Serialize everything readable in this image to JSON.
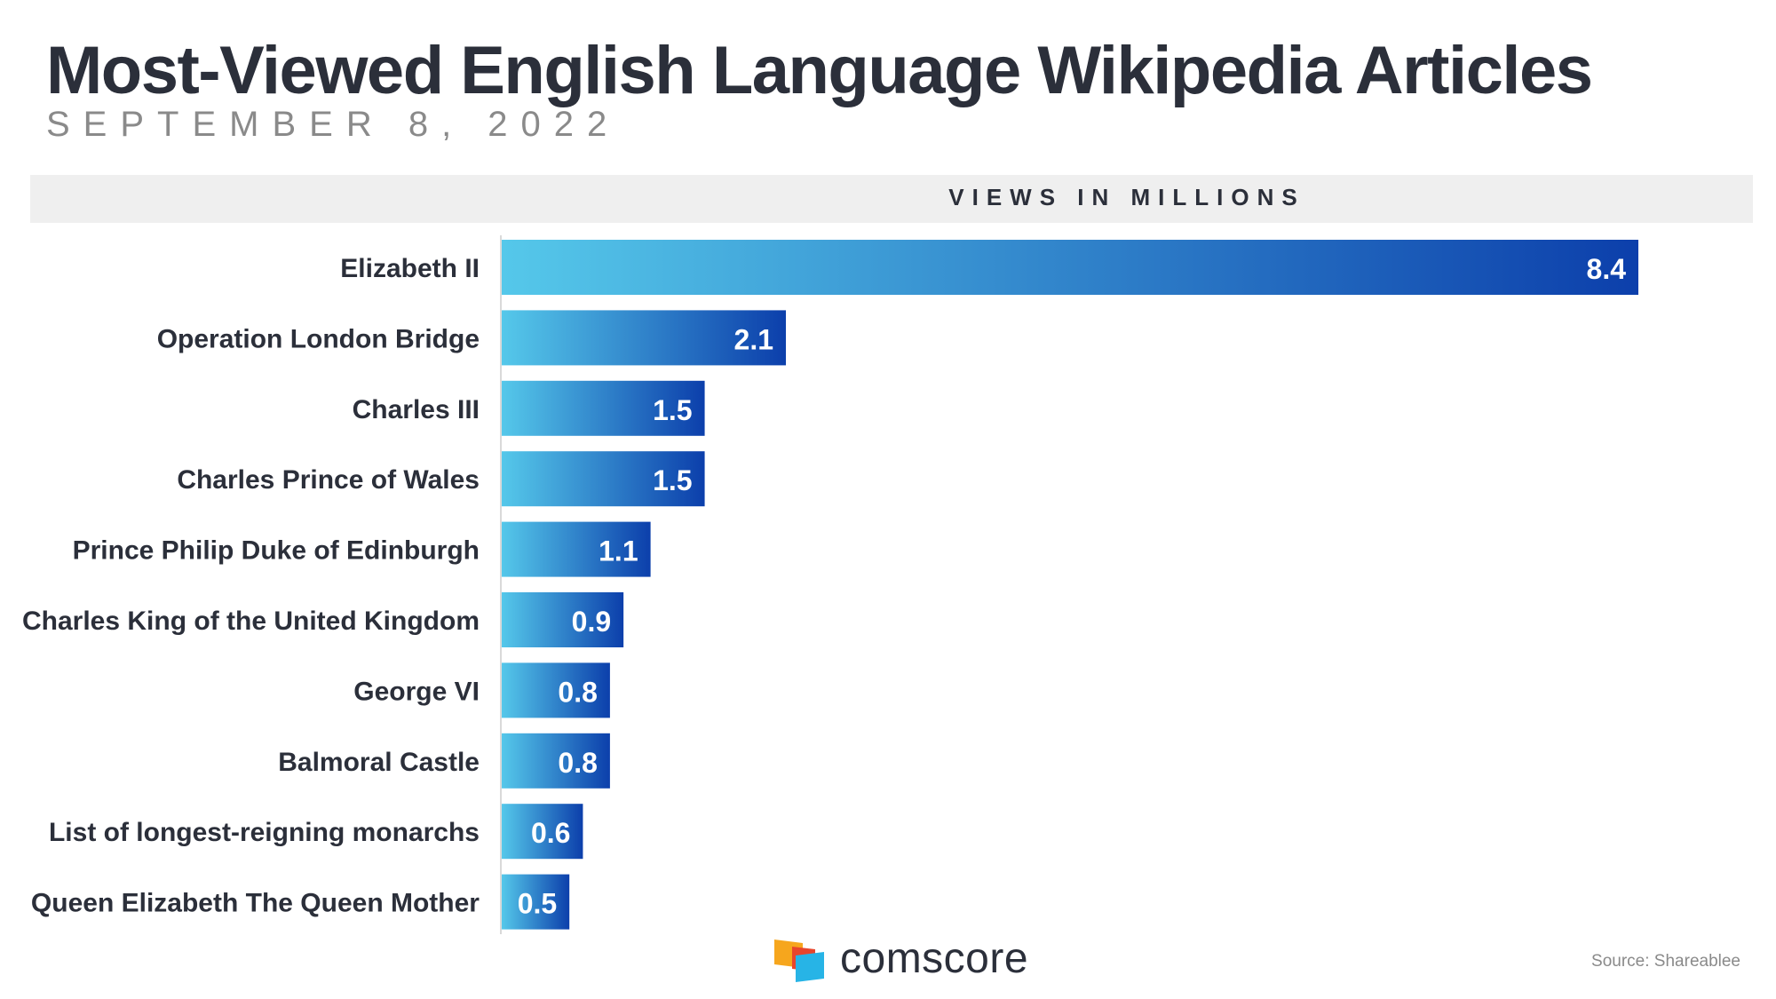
{
  "title": "Most-Viewed English Language Wikipedia Articles",
  "subtitle": "SEPTEMBER 8, 2022",
  "units_label": "VIEWS IN MILLIONS",
  "brand": "comscore",
  "source": "Source: Shareablee",
  "colors": {
    "bar_start": "#55c8ea",
    "bar_end": "#0c3fab",
    "band": "#efefef",
    "text": "#2b2f3a"
  },
  "chart_data": {
    "type": "bar",
    "orientation": "horizontal",
    "title": "Most-Viewed English Language Wikipedia Articles",
    "subtitle": "SEPTEMBER 8, 2022",
    "xlabel": "VIEWS IN MILLIONS",
    "ylabel": "",
    "categories": [
      "Elizabeth II",
      "Operation London Bridge",
      "Charles III",
      "Charles Prince of Wales",
      "Prince Philip Duke of Edinburgh",
      "Charles King of the United Kingdom",
      "George VI",
      "Balmoral Castle",
      "List of longest-reigning monarchs",
      "Queen Elizabeth The Queen Mother"
    ],
    "values": [
      8.4,
      2.1,
      1.5,
      1.5,
      1.1,
      0.9,
      0.8,
      0.8,
      0.6,
      0.5
    ],
    "xlim": [
      0,
      8.4
    ],
    "grid": false,
    "legend": "none"
  }
}
